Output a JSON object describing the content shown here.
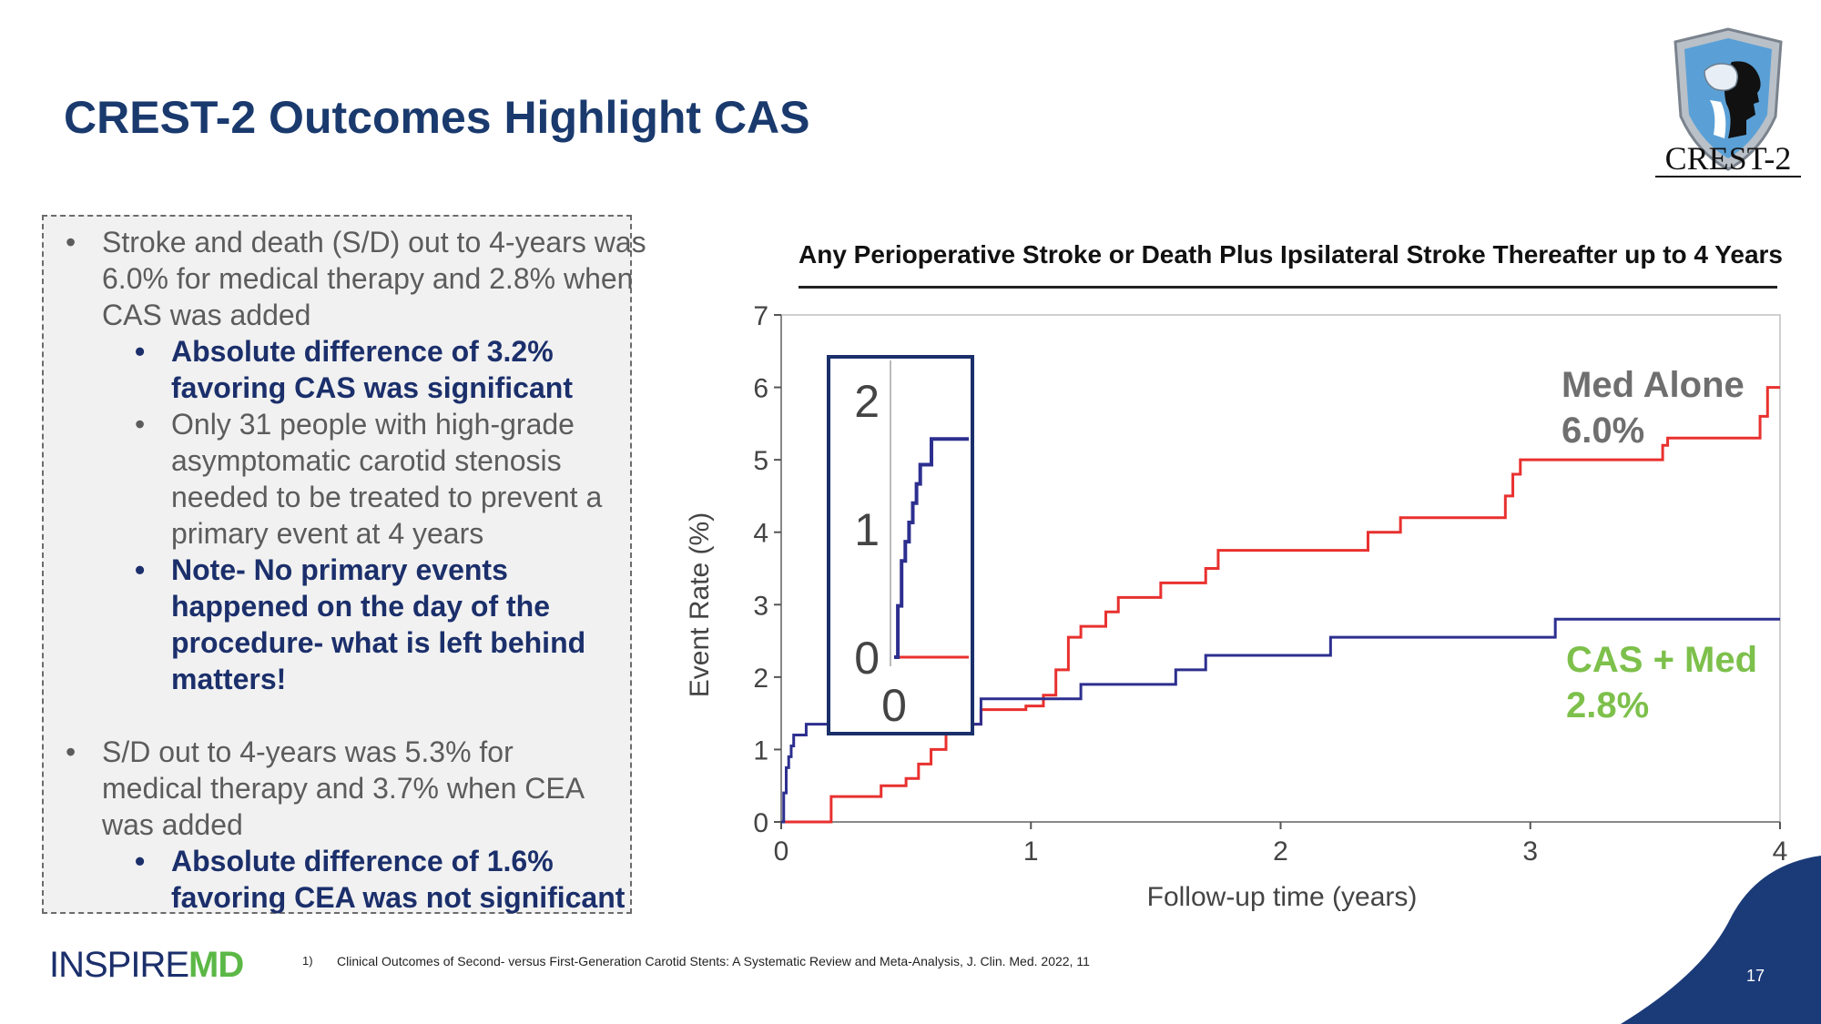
{
  "slide": {
    "title": "CREST-2 Outcomes Highlight CAS",
    "crest_logo_text": "CREST-2",
    "company_logo": {
      "part1": "INSPIRE",
      "part2": "MD"
    },
    "footnote_number": "1)",
    "footnote": "Clinical Outcomes of Second- versus First-Generation Carotid Stents: A Systematic Review and Meta-Analysis, J. Clin. Med. 2022, 11",
    "page_number": "17",
    "colors": {
      "navy": "#1b2f6b",
      "gray_text": "#5c5c5c",
      "green": "#7dc04b",
      "red": "#e8312f",
      "blue_line": "#2d2f8f"
    }
  },
  "bullets": {
    "b1": "Stroke and death (S/D) out to 4-years was 6.0% for medical therapy and 2.8% when CAS was added",
    "b1a": "Absolute difference of 3.2% favoring CAS was significant",
    "b1b": "Only 31 people with high-grade asymptomatic carotid stenosis needed to be treated to prevent a primary event at 4 years",
    "b1c": "Note- No primary events happened on the day of the procedure- what is left behind matters!",
    "b2": "S/D out to 4-years was 5.3% for medical therapy and 3.7% when CEA was added",
    "b2a": "Absolute difference of 1.6% favoring CEA was not significant"
  },
  "chart_data": {
    "type": "line",
    "step": true,
    "title": "Any Perioperative Stroke or Death Plus Ipsilateral Stroke Thereafter up to 4 Years",
    "xlabel": "Follow-up time (years)",
    "ylabel": "Event Rate (%)",
    "xlim": [
      0,
      4
    ],
    "ylim": [
      0,
      7
    ],
    "xticks": [
      "0",
      "1",
      "2",
      "3",
      "4"
    ],
    "yticks": [
      "0",
      "1",
      "2",
      "3",
      "4",
      "5",
      "6",
      "7"
    ],
    "series": [
      {
        "name": "Med Alone",
        "label_line1": "Med Alone",
        "label_line2": "6.0%",
        "color": "#e8312f",
        "x": [
          0,
          0.2,
          0.2,
          0.4,
          0.4,
          0.5,
          0.5,
          0.55,
          0.55,
          0.6,
          0.6,
          0.66,
          0.66,
          0.8,
          0.8,
          0.98,
          0.98,
          1.05,
          1.05,
          1.1,
          1.1,
          1.15,
          1.15,
          1.2,
          1.2,
          1.3,
          1.3,
          1.35,
          1.35,
          1.52,
          1.52,
          1.7,
          1.7,
          1.75,
          1.75,
          1.77,
          1.77,
          2.35,
          2.35,
          2.48,
          2.48,
          2.9,
          2.9,
          2.93,
          2.93,
          2.96,
          2.96,
          3.53,
          3.53,
          3.55,
          3.55,
          3.92,
          3.92,
          3.95,
          3.95,
          4.0
        ],
        "y": [
          0,
          0,
          0.35,
          0.35,
          0.5,
          0.5,
          0.6,
          0.6,
          0.8,
          0.8,
          1.0,
          1.0,
          1.35,
          1.35,
          1.55,
          1.55,
          1.6,
          1.6,
          1.75,
          1.75,
          2.1,
          2.1,
          2.55,
          2.55,
          2.7,
          2.7,
          2.9,
          2.9,
          3.1,
          3.1,
          3.3,
          3.3,
          3.5,
          3.5,
          3.75,
          3.75,
          3.75,
          3.75,
          4.0,
          4.0,
          4.2,
          4.2,
          4.5,
          4.5,
          4.8,
          4.8,
          5.0,
          5.0,
          5.2,
          5.2,
          5.3,
          5.3,
          5.6,
          5.6,
          6.0,
          6.0
        ]
      },
      {
        "name": "CAS + Med",
        "label_line1": "CAS + Med",
        "label_line2": "2.8%",
        "color": "#2d2f8f",
        "x": [
          0,
          0.01,
          0.01,
          0.02,
          0.02,
          0.03,
          0.03,
          0.04,
          0.04,
          0.05,
          0.05,
          0.06,
          0.06,
          0.1,
          0.1,
          0.8,
          0.8,
          1.2,
          1.2,
          1.58,
          1.58,
          1.7,
          1.7,
          2.2,
          2.2,
          3.1,
          3.1,
          4.0
        ],
        "y": [
          0,
          0,
          0.4,
          0.4,
          0.75,
          0.75,
          0.9,
          0.9,
          1.05,
          1.05,
          1.2,
          1.2,
          1.2,
          1.2,
          1.35,
          1.35,
          1.7,
          1.7,
          1.9,
          1.9,
          2.1,
          2.1,
          2.3,
          2.3,
          2.55,
          2.55,
          2.8,
          2.8
        ]
      }
    ],
    "inset": {
      "yticks": [
        "0",
        "1",
        "2"
      ],
      "xticks": [
        "0"
      ],
      "cas_x": [
        0,
        0.01,
        0.01,
        0.02,
        0.02,
        0.03,
        0.03,
        0.04,
        0.04,
        0.05,
        0.05,
        0.06,
        0.06,
        0.07,
        0.07,
        0.1,
        0.1,
        0.2
      ],
      "cas_y": [
        0,
        0,
        0.4,
        0.4,
        0.75,
        0.75,
        0.9,
        0.9,
        1.05,
        1.05,
        1.2,
        1.2,
        1.35,
        1.35,
        1.5,
        1.5,
        1.7,
        1.7
      ],
      "med_x": [
        0,
        0.2
      ],
      "med_y": [
        0,
        0
      ]
    }
  }
}
